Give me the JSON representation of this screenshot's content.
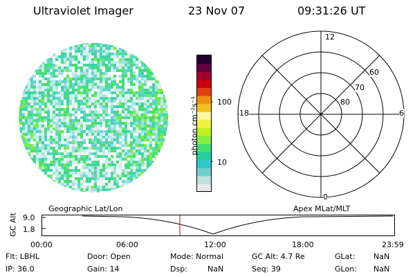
{
  "header": {
    "instrument": "Ultraviolet Imager",
    "date": "23 Nov 07",
    "time": "09:31:26 UT"
  },
  "colorbar": {
    "unit_label": "photon cm⁻²s⁻¹",
    "ticks": [
      "100",
      "10"
    ],
    "colors": [
      "#e8e8e8",
      "#bfe0e0",
      "#6fd0d0",
      "#30c8c8",
      "#20d0a0",
      "#40e070",
      "#80f040",
      "#c0f020",
      "#f0f040",
      "#f8f8a0",
      "#f0c020",
      "#f09010",
      "#e04010",
      "#c80010",
      "#a00030",
      "#600040",
      "#200030"
    ]
  },
  "polar": {
    "labels": {
      "top": "12",
      "left": "18",
      "right": "6",
      "bottom": "0"
    },
    "lat_labels": [
      "60",
      "70",
      "80"
    ]
  },
  "altitude_plot": {
    "left_title": "Geographic Lat/Lon",
    "right_title": "Apex MLat/MLT",
    "ylabel": "GC Alt",
    "yticks": [
      "9.0",
      "1.8"
    ],
    "xticks": [
      "00:00",
      "06:00",
      "12:00",
      "18:00",
      "23:59"
    ]
  },
  "status": {
    "flt": "Flt: LBHL",
    "ip": "IP: 36.0",
    "door": "Door: Open",
    "gain": "Gain: 14",
    "mode": "Mode: Normal",
    "dsp_label": "Dsp:",
    "dsp_value": "NaN",
    "gc_alt": "GC Alt: 4.7 Re",
    "seq": "Seq: 39",
    "glat_label": "GLat:",
    "glat_value": "NaN",
    "glon_label": "GLon:",
    "glon_value": "NaN"
  }
}
